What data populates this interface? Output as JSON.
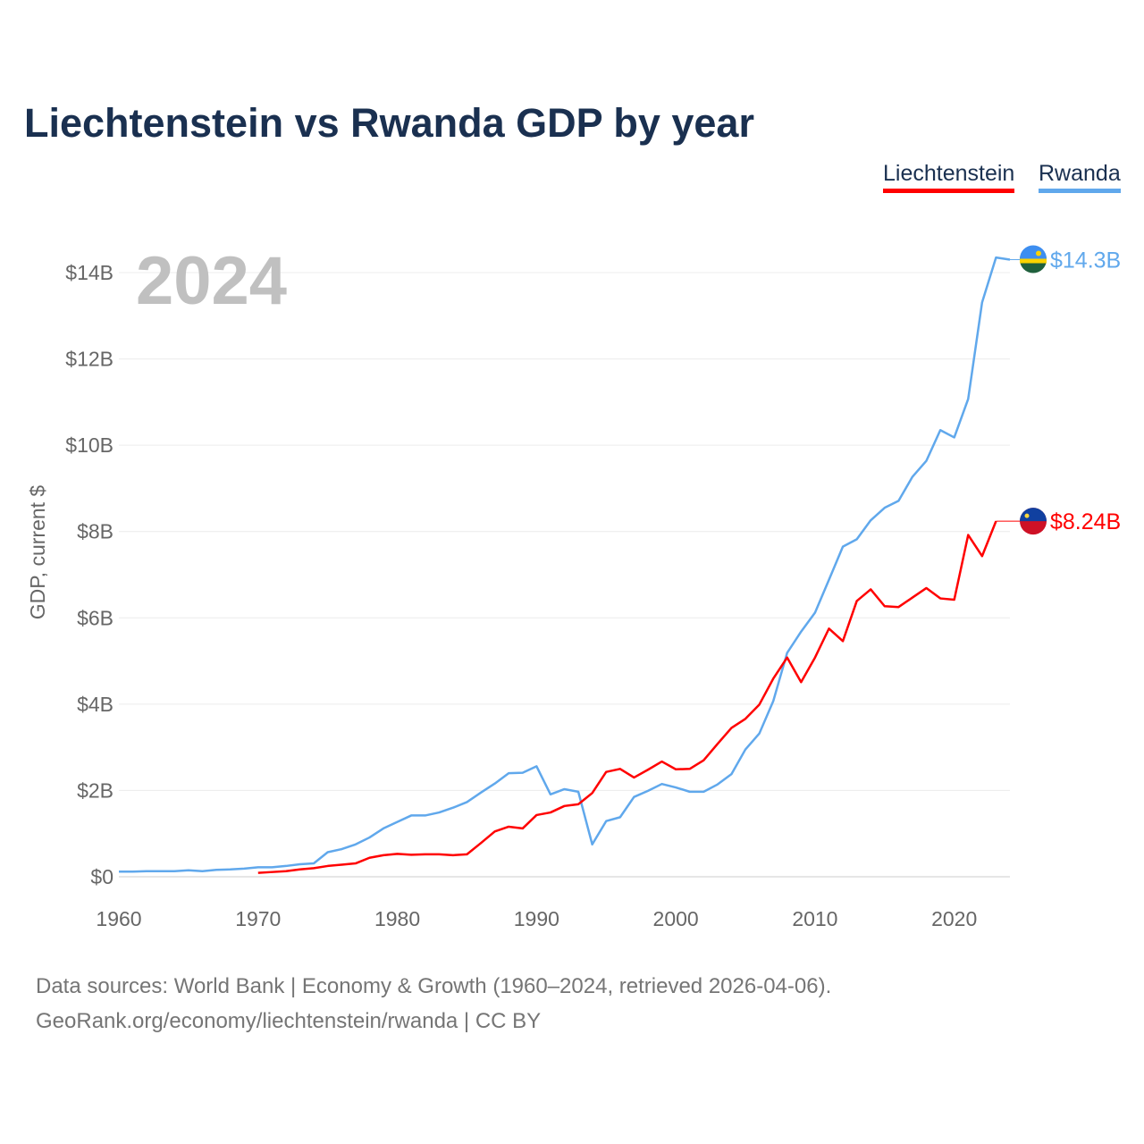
{
  "title": "Liechtenstein vs Rwanda GDP by year",
  "legend": [
    "Liechtenstein",
    "Rwanda"
  ],
  "year_watermark": "2024",
  "footer": [
    "Data sources: World Bank | Economy & Growth (1960–2024, retrieved 2026-04-06).",
    "GeoRank.org/economy/liechtenstein/rwanda | CC BY"
  ],
  "chart_data": {
    "type": "line",
    "title": "Liechtenstein vs Rwanda GDP by year",
    "ylabel": "GDP, current $",
    "xlabel": "",
    "xlim": [
      1960,
      2024
    ],
    "ylim": [
      0,
      14
    ],
    "xticks": [
      1960,
      1970,
      1980,
      1990,
      2000,
      2010,
      2020
    ],
    "xtick_labels": [
      "1960",
      "1970",
      "1980",
      "1990",
      "2000",
      "2010",
      "2020"
    ],
    "yticks": [
      0,
      2,
      4,
      6,
      8,
      10,
      12,
      14
    ],
    "ytick_labels": [
      "$0",
      "$2B",
      "$4B",
      "$6B",
      "$8B",
      "$10B",
      "$12B",
      "$14B"
    ],
    "grid": true,
    "legend_position": "top-right",
    "series": [
      {
        "name": "Liechtenstein",
        "color": "#ff0000",
        "end_label": "$8.24B",
        "start": 1970,
        "values": [
          0.09,
          0.11,
          0.13,
          0.17,
          0.2,
          0.25,
          0.28,
          0.31,
          0.44,
          0.5,
          0.53,
          0.51,
          0.52,
          0.52,
          0.5,
          0.52,
          0.78,
          1.05,
          1.16,
          1.12,
          1.43,
          1.49,
          1.64,
          1.68,
          1.94,
          2.43,
          2.5,
          2.3,
          2.48,
          2.67,
          2.49,
          2.5,
          2.7,
          3.08,
          3.45,
          3.66,
          3.99,
          4.59,
          5.08,
          4.51,
          5.08,
          5.75,
          5.46,
          6.39,
          6.66,
          6.27,
          6.25,
          6.47,
          6.69,
          6.45,
          6.42,
          7.92,
          7.43,
          8.24
        ]
      },
      {
        "name": "Rwanda",
        "color": "#60a8ec",
        "end_label": "$14.3B",
        "start": 1960,
        "values": [
          0.12,
          0.12,
          0.13,
          0.13,
          0.13,
          0.15,
          0.13,
          0.16,
          0.17,
          0.19,
          0.22,
          0.22,
          0.25,
          0.29,
          0.31,
          0.57,
          0.64,
          0.75,
          0.91,
          1.12,
          1.27,
          1.42,
          1.42,
          1.49,
          1.6,
          1.73,
          1.95,
          2.16,
          2.4,
          2.41,
          2.56,
          1.91,
          2.03,
          1.97,
          0.75,
          1.29,
          1.38,
          1.85,
          1.99,
          2.15,
          2.07,
          1.97,
          1.97,
          2.14,
          2.38,
          2.95,
          3.32,
          4.07,
          5.19,
          5.68,
          6.12,
          6.88,
          7.65,
          7.82,
          8.26,
          8.55,
          8.71,
          9.27,
          9.64,
          10.35,
          10.18,
          11.07,
          13.31,
          14.35,
          14.3
        ]
      }
    ]
  }
}
